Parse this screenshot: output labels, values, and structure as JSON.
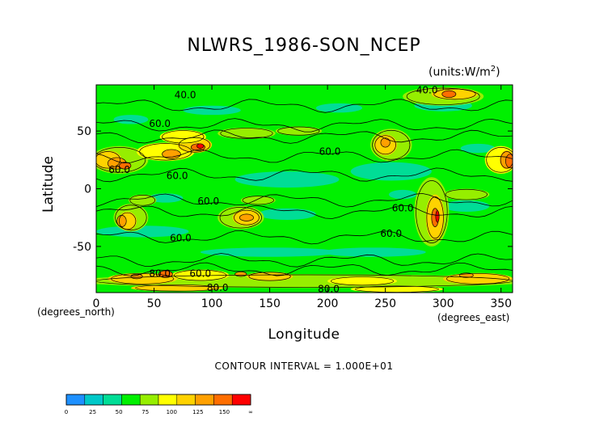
{
  "chart_data": {
    "type": "heatmap",
    "title": "NLWRS_1986-SON_NCEP",
    "units": "(units:W/m^2)",
    "xlabel": "Longitude",
    "ylabel": "Latitude",
    "x_unit_label": "(degrees_east)",
    "y_unit_label": "(degrees_north)",
    "xlim": [
      0,
      360
    ],
    "ylim": [
      -90,
      90
    ],
    "x_ticks": [
      "0",
      "50",
      "100",
      "150",
      "200",
      "250",
      "300",
      "350"
    ],
    "y_ticks": [
      "50",
      "0",
      "-50"
    ],
    "contour_interval": "CONTOUR INTERVAL = 1.000E+01",
    "contour_labels": [
      {
        "text": "40.0",
        "lon": 77,
        "lat": 82
      },
      {
        "text": "40.0",
        "lon": 286,
        "lat": 86
      },
      {
        "text": "60.0",
        "lon": 55,
        "lat": 57
      },
      {
        "text": "60.0",
        "lon": 202,
        "lat": 33
      },
      {
        "text": "60.0",
        "lon": 70,
        "lat": 12
      },
      {
        "text": "60.0",
        "lon": 97,
        "lat": -10
      },
      {
        "text": "60.0",
        "lon": 255,
        "lat": -38
      },
      {
        "text": "60.0",
        "lon": 73,
        "lat": -42
      },
      {
        "text": "60.0",
        "lon": 20,
        "lat": 17
      },
      {
        "text": "80.0",
        "lon": 55,
        "lat": -73
      },
      {
        "text": "60.0",
        "lon": 90,
        "lat": -73
      },
      {
        "text": "80.0",
        "lon": 105,
        "lat": -85
      },
      {
        "text": "80.0",
        "lon": 201,
        "lat": -86
      },
      {
        "text": "60.0",
        "lon": 265,
        "lat": -16
      }
    ],
    "colorbar": {
      "ticks": [
        "0",
        "25",
        "50",
        "75",
        "100",
        "125",
        "150",
        "∞"
      ],
      "colors": [
        "#1e90ff",
        "#00c8c8",
        "#00dd96",
        "#00f000",
        "#96ee00",
        "#ffff00",
        "#ffd200",
        "#ffa000",
        "#ff6e00",
        "#ff0000"
      ]
    }
  }
}
